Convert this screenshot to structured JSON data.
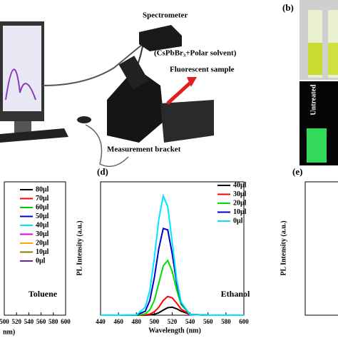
{
  "setup": {
    "labels": [
      "Spectrometer",
      "(CsPbBr₃+Polar solvent)",
      "Fluorescent sample",
      "Measurement bracket"
    ],
    "panel_b": "(b)",
    "vial_label": "Untreated"
  },
  "chart_data": [
    {
      "type": "line",
      "xlim": [
        500,
        600
      ],
      "xticks": [
        500,
        520,
        540,
        560,
        580,
        600
      ],
      "x_label": "nm)",
      "annotation": "Toluene",
      "series": [
        {
          "name": "80μl",
          "color": "#000000"
        },
        {
          "name": "70μl",
          "color": "#ff0000"
        },
        {
          "name": "60μl",
          "color": "#00cc00"
        },
        {
          "name": "50μl",
          "color": "#0000cc"
        },
        {
          "name": "40μl",
          "color": "#00e5ff"
        },
        {
          "name": "30μl",
          "color": "#e000e0"
        },
        {
          "name": "20μl",
          "color": "#ffa500"
        },
        {
          "name": "10μl",
          "color": "#808000"
        },
        {
          "name": "0μl",
          "color": "#7a1fa0"
        }
      ]
    },
    {
      "type": "line",
      "title": "(d)",
      "x_label": "Wavelength (nm)",
      "y_label": "PL Intensity (a.u.)",
      "annotation": "Ethanol",
      "xlim": [
        440,
        600
      ],
      "ylim": [
        0,
        100
      ],
      "xticks": [
        440,
        460,
        480,
        500,
        520,
        540,
        560,
        580,
        600
      ],
      "x": [
        440,
        460,
        480,
        490,
        495,
        500,
        505,
        510,
        515,
        520,
        525,
        530,
        540,
        560,
        580,
        600
      ],
      "series": [
        {
          "name": "40μl",
          "color": "#000000",
          "values": [
            0,
            0,
            0,
            0,
            0.2,
            0.6,
            1.8,
            3.8,
            5.6,
            6,
            4.8,
            3,
            0.6,
            0,
            0,
            0
          ]
        },
        {
          "name": "30μl",
          "color": "#ff0000",
          "values": [
            0,
            0,
            0,
            0.2,
            0.8,
            2.5,
            6,
            11,
            14,
            13,
            9,
            4.5,
            0.6,
            0,
            0,
            0
          ]
        },
        {
          "name": "20μl",
          "color": "#00dd00",
          "values": [
            0,
            0,
            0,
            1,
            4,
            11,
            24,
            37,
            41,
            33,
            19,
            8,
            0.6,
            0,
            0,
            0
          ]
        },
        {
          "name": "10μl",
          "color": "#0000cc",
          "values": [
            0,
            0,
            0.1,
            3,
            11,
            28,
            50,
            65,
            64,
            46,
            24,
            9,
            0.5,
            0,
            0,
            0
          ]
        },
        {
          "name": "0μl",
          "color": "#00e5ff",
          "values": [
            0,
            0,
            0.2,
            6,
            18.5,
            42.7,
            72,
            89.4,
            81.5,
            54.6,
            26.8,
            9.7,
            0.5,
            0,
            0,
            0
          ]
        }
      ]
    },
    {
      "type": "line",
      "title": "(e)",
      "y_label": "PL Intensity (a.u.)"
    }
  ]
}
